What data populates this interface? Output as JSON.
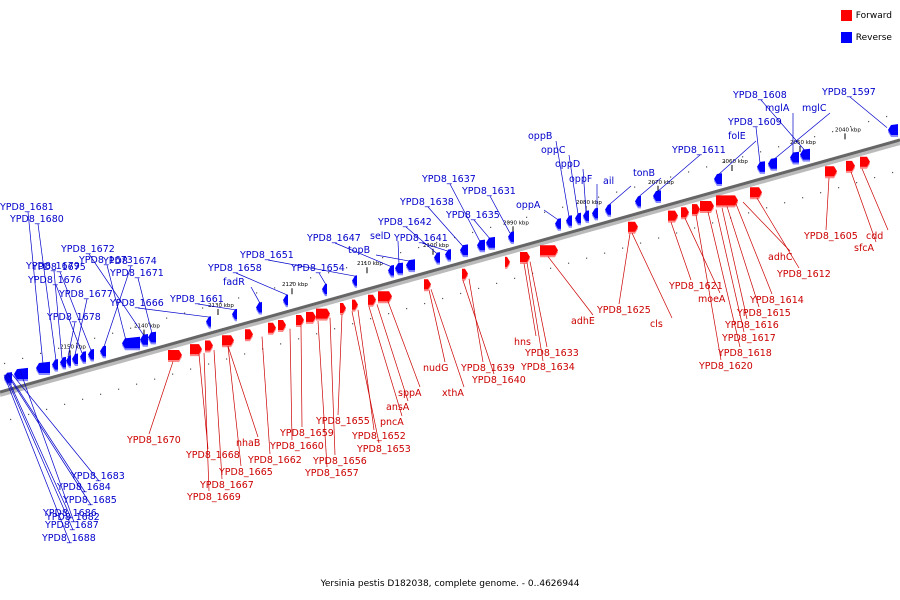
{
  "legend": [
    {
      "label": "Forward",
      "color": "#ff0000"
    },
    {
      "label": "Reverse",
      "color": "#0000ff"
    }
  ],
  "caption": "Yersinia pestis D182038, complete genome. - 0..4626944",
  "colors": {
    "forward": "#ff0000",
    "reverse": "#0000ff",
    "backbone": "#666666",
    "label_forward": "#cc0000",
    "label_reverse": "#0000cc"
  },
  "ticks": [
    "2040 kbp",
    "2050 kbp",
    "2060 kbp",
    "2070 kbp",
    "2080 kbp",
    "2090 kbp",
    "2100 kbp",
    "2110 kbp",
    "2120 kbp",
    "2130 kbp",
    "2140 kbp",
    "2150 kbp"
  ],
  "reverse_genes": [
    "YPD8_1597",
    "YPD8_1608",
    "mglA",
    "mglC",
    "YPD8_1609",
    "folE",
    "YPD8_1611",
    "tonB",
    "ail",
    "oppF",
    "oppD",
    "oppC",
    "oppB",
    "oppA",
    "YPD8_1631",
    "YPD8_1635",
    "YPD8_1637",
    "YPD8_1638",
    "YPD8_1641",
    "YPD8_1642",
    "topB",
    "selD",
    "YPD8_1647",
    "YPD8_1651",
    "YPD8_1654",
    "YPD8_1658",
    "fadR",
    "YPD8_1661",
    "YPD8_1666",
    "YPD8_1671",
    "YPD8_1672",
    "YPD8_1673",
    "YPD8_1674",
    "YPD8_1675",
    "YPD8_1676",
    "YPD8_1677",
    "YPD8_1678",
    "YPD8_1679",
    "YPD8_1680",
    "YPD8_1681",
    "YPD8_1682",
    "YPD8_1683",
    "YPD8_1684",
    "YPD8_1685",
    "YPD8_1686",
    "YPD8_1687",
    "YPD8_1688"
  ],
  "forward_genes": [
    "cdd",
    "sfcA",
    "YPD8_1605",
    "YPD8_1612",
    "adhC",
    "YPD8_1614",
    "YPD8_1615",
    "YPD8_1616",
    "YPD8_1617",
    "YPD8_1618",
    "YPD8_1620",
    "moeA",
    "YPD8_1621",
    "cls",
    "YPD8_1625",
    "adhE",
    "hns",
    "YPD8_1633",
    "YPD8_1634",
    "YPD8_1639",
    "YPD8_1640",
    "xthA",
    "nudG",
    "sppA",
    "ansA",
    "pncA",
    "YPD8_1652",
    "YPD8_1653",
    "YPD8_1655",
    "YPD8_1656",
    "YPD8_1657",
    "YPD8_1659",
    "YPD8_1660",
    "YPD8_1662",
    "nhaB",
    "YPD8_1665",
    "YPD8_1667",
    "YPD8_1668",
    "YPD8_1669",
    "YPD8_1670"
  ]
}
